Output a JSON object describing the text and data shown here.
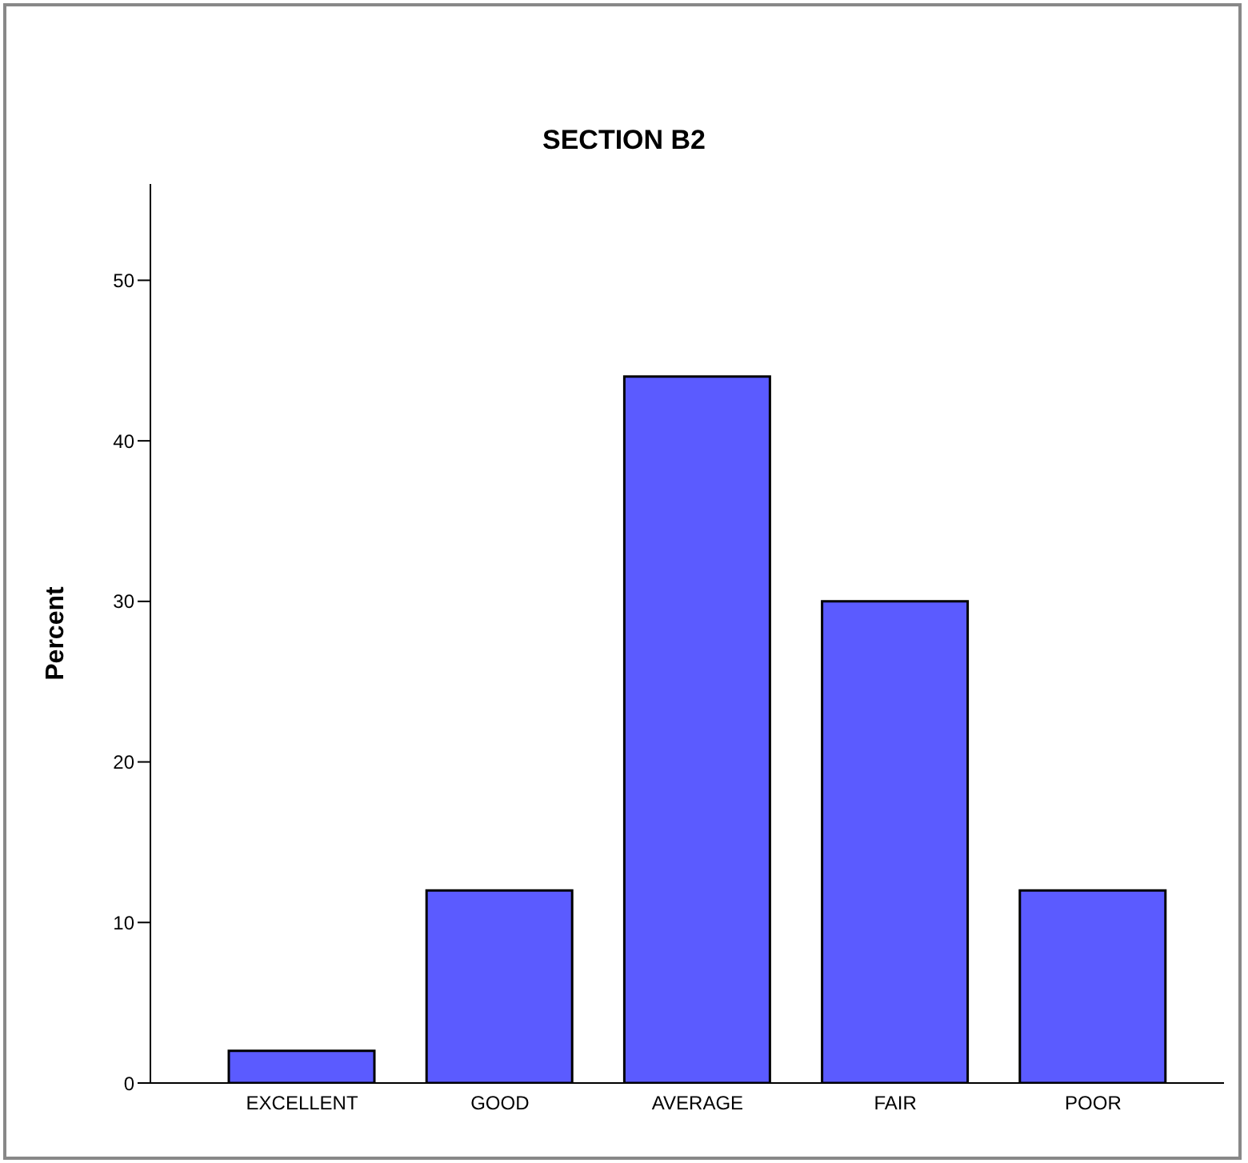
{
  "chart_data": {
    "type": "bar",
    "title": "SECTION B2",
    "ylabel": "Percent",
    "categories": [
      "EXCELLENT",
      "GOOD",
      "AVERAGE",
      "FAIR",
      "POOR"
    ],
    "values": [
      2,
      12,
      44,
      30,
      12
    ],
    "color": "#5b5bff",
    "ylim": [
      0,
      56
    ],
    "yticks": [
      0,
      10,
      20,
      30,
      40,
      50
    ],
    "grid": false
  }
}
